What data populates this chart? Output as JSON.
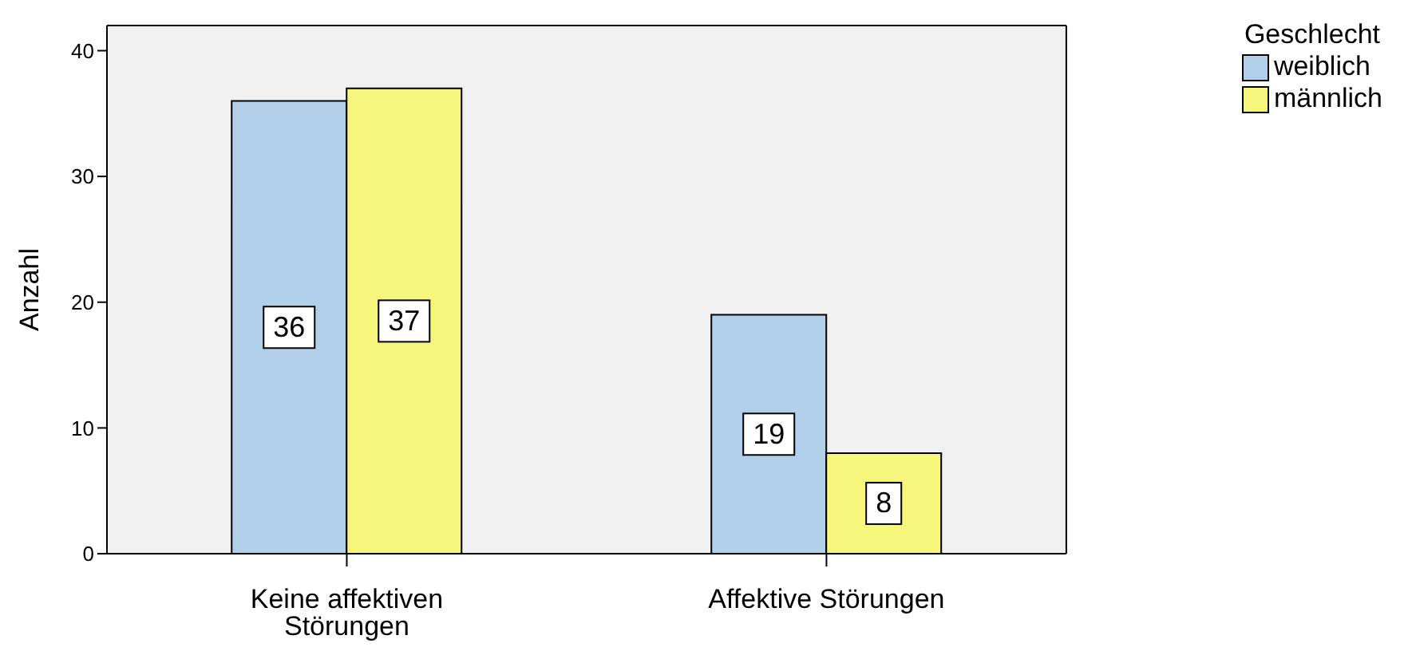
{
  "chart_data": {
    "type": "bar",
    "categories": [
      "Keine affektiven Störungen",
      "Affektive Störungen"
    ],
    "series": [
      {
        "name": "weiblich",
        "color": "#b1cfe9",
        "values": [
          36,
          19
        ]
      },
      {
        "name": "männlich",
        "color": "#f7f67c",
        "values": [
          37,
          8
        ]
      }
    ],
    "ylabel": "Anzahl",
    "legend_title": "Geschlecht",
    "legend": "top right",
    "ylim": [
      0,
      42
    ],
    "yticks": [
      0,
      10,
      20,
      30,
      40
    ],
    "grid": false,
    "data_labels": true
  }
}
